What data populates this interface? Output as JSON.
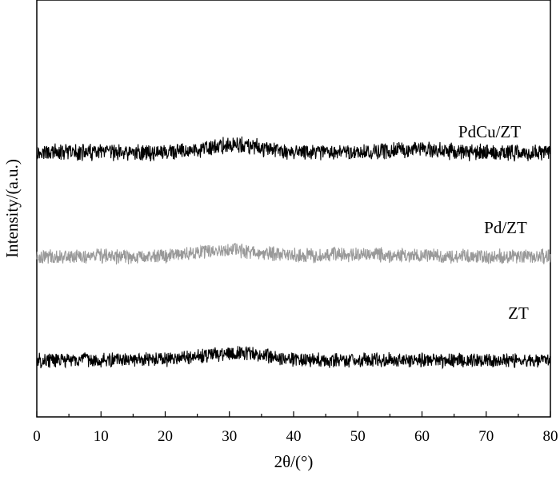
{
  "chart_data": {
    "type": "line",
    "xlabel": "2θ/(°)",
    "ylabel": "Intensity/(a.u.)",
    "xlim": [
      0,
      80
    ],
    "x_ticks": [
      "0",
      "10",
      "20",
      "30",
      "40",
      "50",
      "60",
      "70",
      "80"
    ],
    "grid": false,
    "legend": "none",
    "series": [
      {
        "name": "PdCu/ZT",
        "color": "#000000",
        "baseline": 3.0,
        "amplitude": 0.09,
        "peaks": [
          [
            31,
            0.07,
            4
          ],
          [
            59,
            0.03,
            4
          ]
        ]
      },
      {
        "name": "Pd/ZT",
        "color": "#999999",
        "baseline": 2.0,
        "amplitude": 0.08,
        "peaks": [
          [
            30,
            0.06,
            5
          ],
          [
            50,
            0.02,
            5
          ]
        ]
      },
      {
        "name": "ZT",
        "color": "#000000",
        "baseline": 1.0,
        "amplitude": 0.08,
        "peaks": [
          [
            31,
            0.07,
            5
          ]
        ]
      }
    ]
  }
}
